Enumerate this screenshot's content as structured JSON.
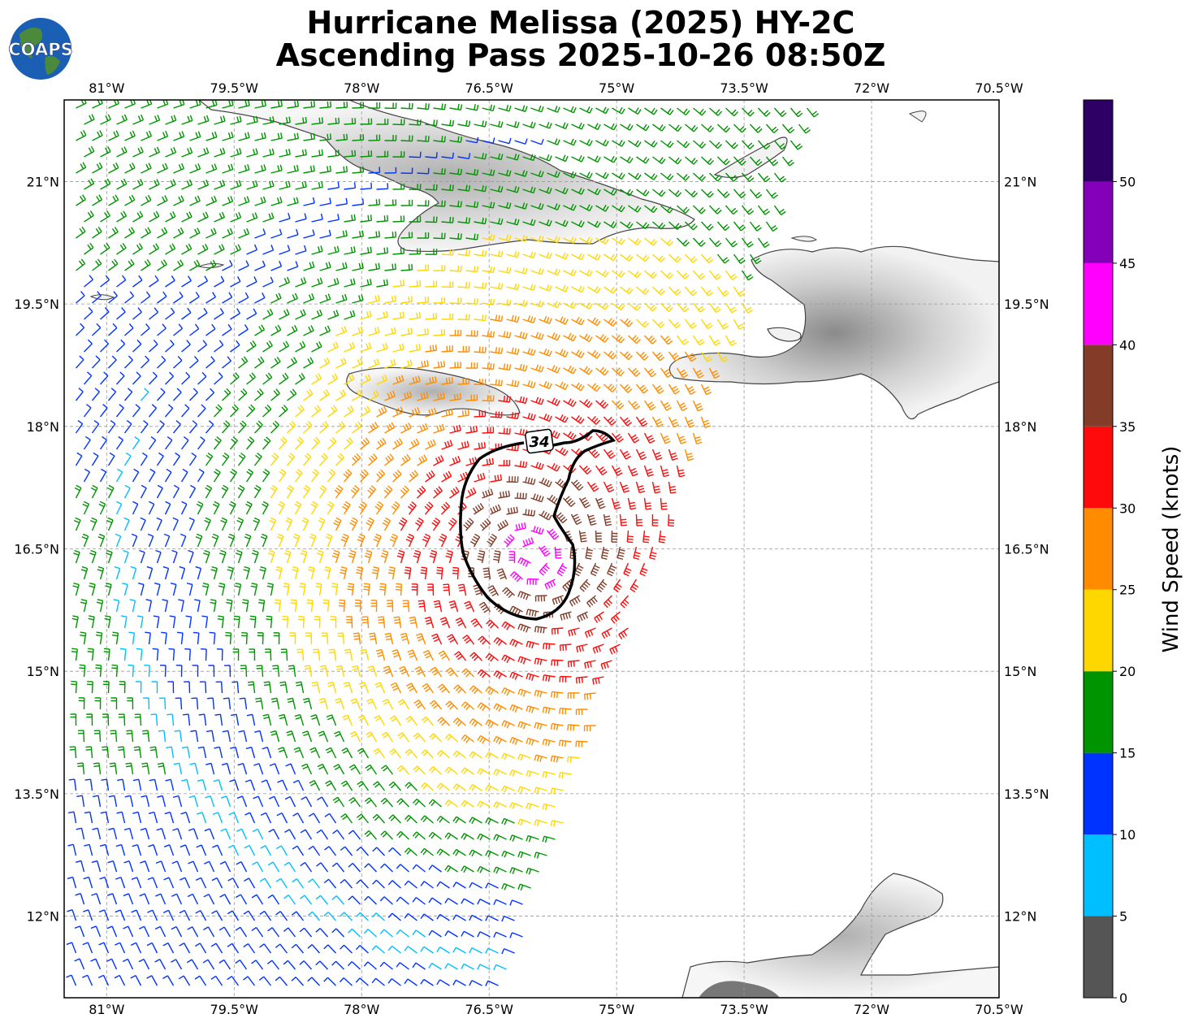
{
  "title_line1": "Hurricane Melissa (2025) HY-2C",
  "title_line2": "Ascending Pass 2025-10-26 08:50Z",
  "logo_text": "COAPS",
  "map": {
    "lon_range": [
      -81.5,
      -70.5
    ],
    "lat_range": [
      11.0,
      22.0
    ],
    "lon_ticks": [
      -81,
      -79.5,
      -78,
      -76.5,
      -75,
      -73.5,
      -72,
      -70.5
    ],
    "lon_tick_labels": [
      "81°W",
      "79.5°W",
      "78°W",
      "76.5°W",
      "75°W",
      "73.5°W",
      "72°W",
      "70.5°W"
    ],
    "lat_ticks": [
      21,
      19.5,
      18,
      16.5,
      15,
      13.5,
      12
    ],
    "lat_tick_labels": [
      "21°N",
      "19.5°N",
      "18°N",
      "16.5°N",
      "15°N",
      "13.5°N",
      "12°N"
    ],
    "gridlines": true,
    "storm_center": {
      "lon": -76.0,
      "lat": 16.4
    },
    "contour_label": "34"
  },
  "colorbar": {
    "label": "Wind Speed (knots)",
    "bins": [
      {
        "min": 0,
        "max": 5,
        "color": "#555555"
      },
      {
        "min": 5,
        "max": 10,
        "color": "#00bfff"
      },
      {
        "min": 10,
        "max": 15,
        "color": "#0033ff"
      },
      {
        "min": 15,
        "max": 20,
        "color": "#009400"
      },
      {
        "min": 20,
        "max": 25,
        "color": "#ffd700"
      },
      {
        "min": 25,
        "max": 30,
        "color": "#ff8c00"
      },
      {
        "min": 30,
        "max": 35,
        "color": "#ff0a0a"
      },
      {
        "min": 35,
        "max": 40,
        "color": "#823c28"
      },
      {
        "min": 40,
        "max": 45,
        "color": "#ff00ff"
      },
      {
        "min": 45,
        "max": 50,
        "color": "#8400b8"
      },
      {
        "min": 50,
        "max": 55,
        "color": "#2e0066"
      }
    ],
    "tick_labels": [
      "0",
      "5",
      "10",
      "15",
      "20",
      "25",
      "30",
      "35",
      "40",
      "45",
      "50"
    ]
  }
}
